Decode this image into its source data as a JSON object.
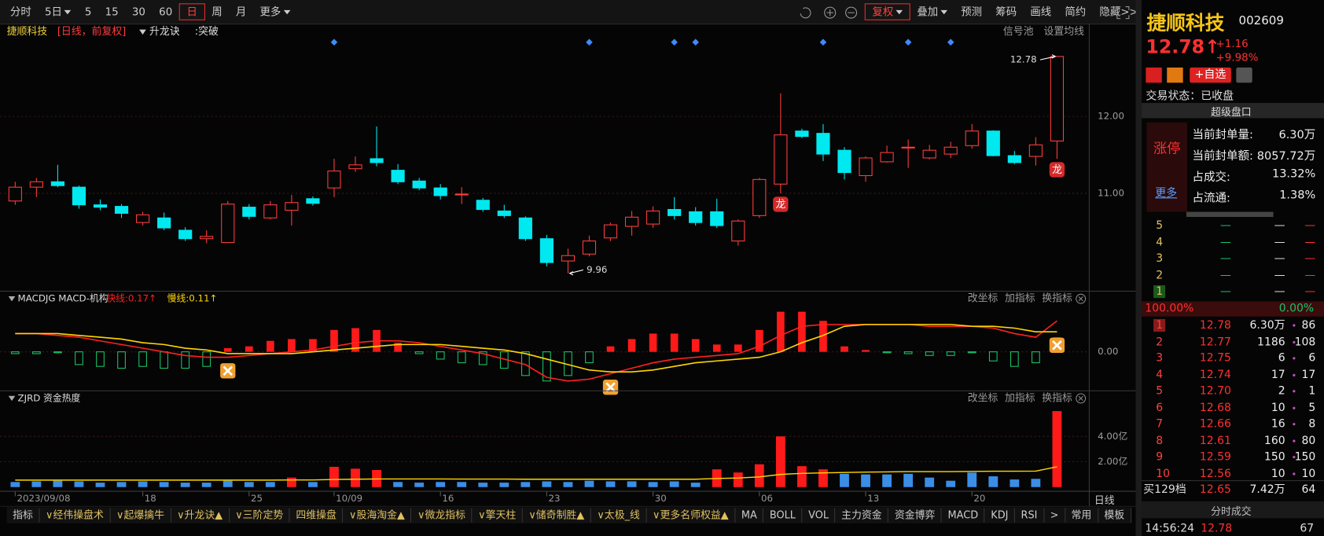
{
  "toolbar": {
    "periods": [
      "分时",
      "5日",
      "5",
      "15",
      "30",
      "60",
      "日",
      "周",
      "月",
      "更多"
    ],
    "selected_period": 6,
    "period_dropdowns": [
      1,
      9
    ],
    "tools": [
      "复权",
      "叠加",
      "预测",
      "筹码",
      "画线",
      "简约",
      "隐藏>>"
    ],
    "active_tool": 0,
    "tool_dropdowns": [
      0,
      1
    ]
  },
  "info": {
    "name": "捷顺科技",
    "period": "[日线，前复权]",
    "indicator": "升龙诀",
    "signal": ":突破",
    "links": [
      "信号池",
      "设置均线"
    ]
  },
  "chart_data": [
    {
      "type": "candlestick",
      "categories": [
        "2023/09/08",
        null,
        null,
        null,
        null,
        null,
        "18",
        null,
        null,
        null,
        null,
        "25",
        null,
        null,
        null,
        "10/09",
        null,
        null,
        null,
        null,
        "16",
        null,
        null,
        null,
        null,
        "23",
        null,
        null,
        null,
        null,
        "30",
        null,
        null,
        null,
        null,
        "06",
        null,
        null,
        null,
        null,
        "13",
        null,
        null,
        null,
        null,
        "20",
        null,
        null,
        null,
        null
      ],
      "open": [
        10.9,
        11.08,
        11.15,
        11.08,
        10.85,
        10.83,
        10.62,
        10.68,
        10.52,
        10.41,
        10.36,
        10.82,
        10.68,
        10.78,
        10.93,
        11.07,
        11.32,
        11.45,
        11.3,
        11.16,
        11.07,
        10.98,
        10.91,
        10.77,
        10.68,
        10.41,
        10.12,
        10.21,
        10.42,
        10.57,
        10.6,
        10.79,
        10.76,
        10.76,
        10.38,
        10.71,
        11.12,
        11.81,
        11.78,
        11.56,
        11.23,
        11.41,
        11.59,
        11.46,
        11.51,
        11.62,
        11.81,
        11.49,
        11.48,
        11.68
      ],
      "high": [
        11.15,
        11.2,
        11.37,
        11.1,
        10.92,
        10.86,
        10.76,
        10.75,
        10.56,
        10.52,
        10.9,
        10.86,
        10.9,
        10.98,
        10.96,
        11.45,
        11.48,
        11.87,
        11.38,
        11.2,
        11.12,
        11.08,
        10.94,
        10.85,
        10.7,
        10.46,
        10.28,
        10.45,
        10.62,
        10.77,
        10.83,
        10.95,
        10.82,
        10.93,
        10.66,
        11.2,
        12.3,
        11.84,
        11.9,
        11.6,
        11.48,
        11.62,
        11.7,
        11.63,
        11.67,
        11.9,
        11.82,
        11.55,
        11.73,
        12.78
      ],
      "low": [
        10.85,
        10.95,
        11.08,
        10.8,
        10.78,
        10.68,
        10.58,
        10.52,
        10.38,
        10.35,
        10.36,
        10.66,
        10.66,
        10.58,
        10.84,
        10.95,
        11.28,
        11.35,
        11.12,
        11.04,
        10.92,
        10.86,
        10.76,
        10.68,
        10.38,
        10.05,
        9.96,
        10.18,
        10.38,
        10.45,
        10.55,
        10.66,
        10.58,
        10.55,
        10.32,
        10.68,
        11.0,
        11.72,
        11.42,
        11.18,
        11.15,
        11.4,
        11.33,
        11.44,
        11.46,
        11.58,
        11.48,
        11.38,
        11.36,
        11.45
      ],
      "close": [
        11.08,
        11.15,
        11.1,
        10.85,
        10.82,
        10.74,
        10.72,
        10.55,
        10.41,
        10.44,
        10.86,
        10.7,
        10.85,
        10.88,
        10.87,
        11.29,
        11.37,
        11.4,
        11.15,
        11.07,
        10.97,
        10.99,
        10.79,
        10.71,
        10.41,
        10.1,
        10.19,
        10.38,
        10.59,
        10.69,
        10.77,
        10.71,
        10.62,
        10.58,
        10.64,
        11.18,
        11.76,
        11.74,
        11.51,
        11.27,
        11.46,
        11.53,
        11.6,
        11.56,
        11.6,
        11.81,
        11.49,
        11.4,
        11.63,
        12.78
      ],
      "ylim": [
        9.76,
        13.02
      ],
      "yticks": [
        {
          "value": 11,
          "label": "11.00"
        },
        {
          "value": 12,
          "label": "12.00"
        }
      ],
      "up_color": "#ff3c3c",
      "down_color": "#00e8f0",
      "signals": [
        15,
        27,
        31,
        32,
        38,
        42,
        44
      ],
      "signal_color": "#3d8bfd",
      "badges": [
        {
          "index": 36,
          "label": "龙"
        },
        {
          "index": 49,
          "label": "龙"
        }
      ],
      "annotations": [
        {
          "index": 49,
          "value": 12.78
        },
        {
          "index": 26,
          "value": 9.96
        }
      ]
    },
    {
      "type": "macd",
      "title": "MACDJG MACD-机构",
      "legend": [
        "快线:0.17↑",
        "慢线:0.11↑"
      ],
      "tools": [
        "改坐标",
        "加指标",
        "换指标"
      ],
      "histogram": [
        -0.01,
        -0.01,
        -0.005,
        -0.07,
        -0.08,
        -0.09,
        -0.08,
        -0.09,
        -0.09,
        -0.08,
        0.02,
        0.03,
        0.06,
        0.07,
        0.07,
        0.12,
        0.13,
        0.12,
        0.05,
        -0.01,
        -0.04,
        -0.06,
        -0.07,
        -0.09,
        -0.13,
        -0.16,
        -0.13,
        -0.06,
        0.03,
        0.07,
        0.1,
        0.1,
        0.07,
        0.04,
        0.04,
        0.12,
        0.22,
        0.22,
        0.17,
        0.03,
        0.01,
        -0.005,
        -0.01,
        -0.02,
        -0.02,
        -0.005,
        -0.05,
        -0.08,
        -0.06,
        0.08
      ],
      "series": [
        {
          "color": "#ff2020",
          "values": [
            0.1,
            0.1,
            0.09,
            0.08,
            0.06,
            0.04,
            0.02,
            0.0,
            -0.02,
            -0.03,
            -0.03,
            -0.02,
            -0.01,
            0.0,
            0.01,
            0.03,
            0.05,
            0.06,
            0.06,
            0.05,
            0.03,
            0.01,
            -0.01,
            -0.04,
            -0.07,
            -0.14,
            -0.16,
            -0.15,
            -0.12,
            -0.09,
            -0.06,
            -0.04,
            -0.03,
            -0.02,
            -0.01,
            0.03,
            0.09,
            0.14,
            0.15,
            0.15,
            0.15,
            0.15,
            0.15,
            0.14,
            0.14,
            0.14,
            0.13,
            0.1,
            0.08,
            0.17
          ]
        },
        {
          "color": "#ffd700",
          "values": [
            0.1,
            0.1,
            0.1,
            0.09,
            0.08,
            0.07,
            0.05,
            0.04,
            0.02,
            0.01,
            -0.01,
            -0.01,
            -0.01,
            -0.01,
            0.0,
            0.01,
            0.02,
            0.03,
            0.04,
            0.04,
            0.04,
            0.03,
            0.02,
            0.01,
            -0.01,
            -0.04,
            -0.07,
            -0.1,
            -0.11,
            -0.11,
            -0.1,
            -0.08,
            -0.06,
            -0.05,
            -0.04,
            -0.03,
            0.0,
            0.05,
            0.09,
            0.14,
            0.15,
            0.15,
            0.15,
            0.15,
            0.15,
            0.14,
            0.14,
            0.13,
            0.11,
            0.11
          ]
        }
      ],
      "ylim": [
        -0.2,
        0.24
      ],
      "yticks": [
        {
          "value": 0,
          "label": "0.00"
        }
      ],
      "up_color": "#ff1a1a",
      "down_color": "#19c36b",
      "crosses": [
        10,
        28,
        49
      ]
    },
    {
      "type": "bar",
      "title": "ZJRD 资金热度",
      "tools": [
        "改坐标",
        "加指标",
        "换指标"
      ],
      "values": [
        0.4,
        0.45,
        0.5,
        0.45,
        0.35,
        0.4,
        0.45,
        0.4,
        0.35,
        0.35,
        0.5,
        0.4,
        0.4,
        0.75,
        0.4,
        1.6,
        1.45,
        1.35,
        0.4,
        0.35,
        0.4,
        0.4,
        0.35,
        0.35,
        0.4,
        0.45,
        0.4,
        0.5,
        0.45,
        0.45,
        0.4,
        0.45,
        0.35,
        1.4,
        1.15,
        1.8,
        4.0,
        1.65,
        1.4,
        1.05,
        1.0,
        1.0,
        1.05,
        0.75,
        0.5,
        1.15,
        0.85,
        0.6,
        0.65,
        6.0
      ],
      "colors": [
        "#3a8ee6",
        "#3a8ee6",
        "#3a8ee6",
        "#3a8ee6",
        "#3a8ee6",
        "#3a8ee6",
        "#3a8ee6",
        "#3a8ee6",
        "#3a8ee6",
        "#3a8ee6",
        "#3a8ee6",
        "#3a8ee6",
        "#3a8ee6",
        "#ff1a1a",
        "#3a8ee6",
        "#ff1a1a",
        "#ff1a1a",
        "#ff1a1a",
        "#3a8ee6",
        "#3a8ee6",
        "#3a8ee6",
        "#3a8ee6",
        "#3a8ee6",
        "#3a8ee6",
        "#3a8ee6",
        "#3a8ee6",
        "#3a8ee6",
        "#3a8ee6",
        "#3a8ee6",
        "#3a8ee6",
        "#3a8ee6",
        "#3a8ee6",
        "#3a8ee6",
        "#ff1a1a",
        "#ff1a1a",
        "#ff1a1a",
        "#ff1a1a",
        "#ff1a1a",
        "#ff1a1a",
        "#3a8ee6",
        "#3a8ee6",
        "#3a8ee6",
        "#3a8ee6",
        "#3a8ee6",
        "#3a8ee6",
        "#3a8ee6",
        "#3a8ee6",
        "#3a8ee6",
        "#3a8ee6",
        "#ff1a1a"
      ],
      "series": [
        {
          "color": "#ffd700",
          "values": [
            0.55,
            0.55,
            0.55,
            0.55,
            0.55,
            0.55,
            0.55,
            0.55,
            0.55,
            0.55,
            0.55,
            0.55,
            0.55,
            0.56,
            0.56,
            0.6,
            0.62,
            0.64,
            0.64,
            0.64,
            0.64,
            0.63,
            0.63,
            0.63,
            0.62,
            0.62,
            0.62,
            0.62,
            0.62,
            0.62,
            0.62,
            0.62,
            0.62,
            0.68,
            0.72,
            0.8,
            1.0,
            1.08,
            1.12,
            1.15,
            1.18,
            1.2,
            1.22,
            1.22,
            1.22,
            1.24,
            1.25,
            1.25,
            1.26,
            1.6
          ]
        }
      ],
      "ylim": [
        -0.33,
        6.47
      ],
      "yticks": [
        {
          "value": 2,
          "label": "2.00亿"
        },
        {
          "value": 4,
          "label": "4.00亿"
        }
      ]
    }
  ],
  "period_label": "日线",
  "tabs": [
    "指标",
    "∨经伟操盘术",
    "∨起爆擒牛",
    "∨升龙诀▲",
    "∨三阶定势",
    "四维操盘",
    "∨股海淘金▲",
    "∨微龙指标",
    "∨擎天柱",
    "∨储奇制胜▲",
    "∨太极_线",
    "∨更多名师权益▲",
    "MA",
    "BOLL",
    "VOL",
    "主力资金",
    "资金博弈",
    "MACD",
    "KDJ",
    "RSI",
    ">",
    "常用",
    "模板"
  ],
  "quote": {
    "name": "捷顺科技",
    "code": "002609",
    "price": "12.78↑",
    "change": "+1.16",
    "change_pct": "+9.98%",
    "watch": "+自选",
    "status": "交易状态：已收盘",
    "panel_title": "超级盘口",
    "limit": "涨停",
    "more": "更多",
    "stats": [
      [
        "当前封单量:",
        "6.30万"
      ],
      [
        "当前封单额:",
        "8057.72万"
      ],
      [
        "占成交:",
        "13.32%"
      ],
      [
        "占流通:",
        "1.38%"
      ]
    ],
    "asks": [
      [
        "5",
        "—",
        "—",
        "—"
      ],
      [
        "4",
        "—",
        "—",
        "—"
      ],
      [
        "3",
        "—",
        "—",
        "—"
      ],
      [
        "2",
        "—",
        "—",
        "—"
      ],
      [
        "1",
        "—",
        "—",
        "—"
      ]
    ],
    "ratio": [
      "100.00%",
      "0.00%"
    ],
    "bids": [
      [
        "1",
        "12.78",
        "6.30万",
        "86"
      ],
      [
        "2",
        "12.77",
        "1186",
        "108"
      ],
      [
        "3",
        "12.75",
        "6",
        "6"
      ],
      [
        "4",
        "12.74",
        "17",
        "17"
      ],
      [
        "5",
        "12.70",
        "2",
        "1"
      ],
      [
        "6",
        "12.68",
        "10",
        "5"
      ],
      [
        "7",
        "12.66",
        "16",
        "8"
      ],
      [
        "8",
        "12.61",
        "160",
        "80"
      ],
      [
        "9",
        "12.59",
        "150",
        "150"
      ],
      [
        "10",
        "12.56",
        "10",
        "10"
      ]
    ],
    "summary": [
      "买129档",
      "12.65",
      "7.42万",
      "64"
    ],
    "trades_title": "分时成交",
    "trade": [
      "14:56:24",
      "12.78",
      "67"
    ]
  }
}
